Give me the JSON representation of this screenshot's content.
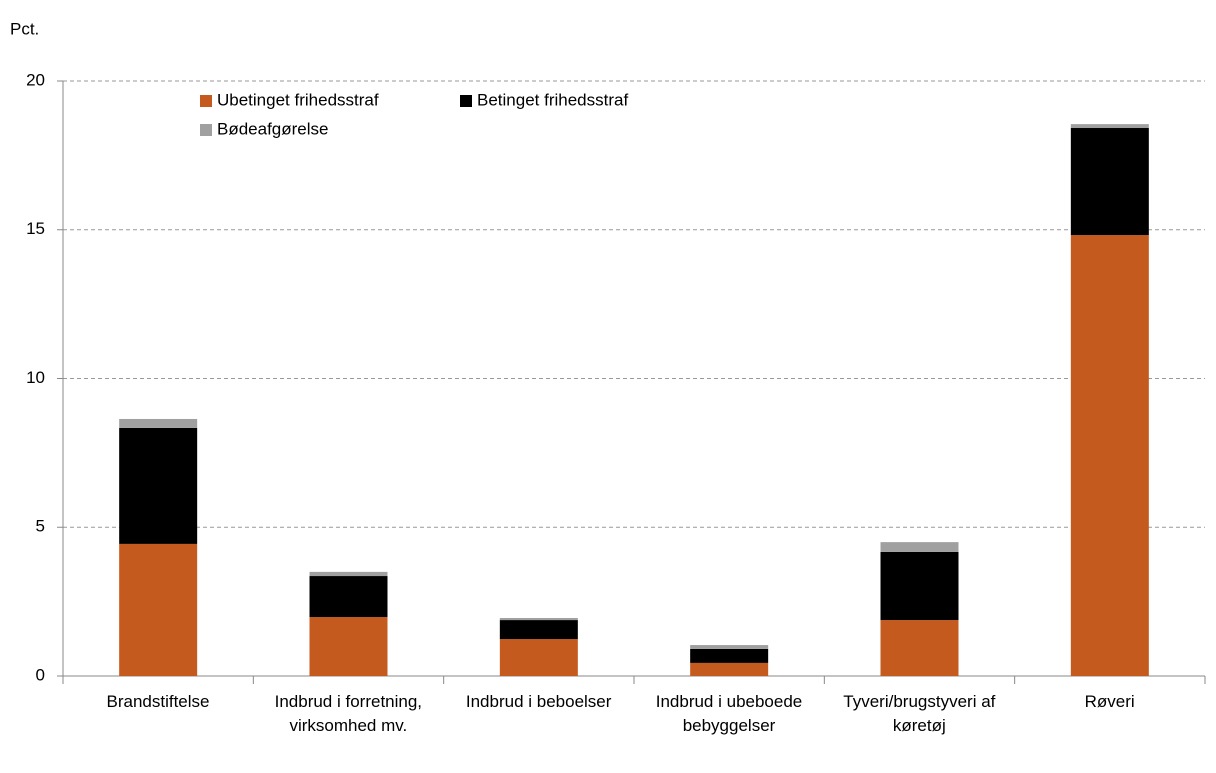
{
  "chart_data": {
    "type": "stacked-bar",
    "y_label": "Pct.",
    "categories": [
      "Brandstiftelse",
      "Indbrud i forretning, virksomhed mv.",
      "Indbrud i beboelser",
      "Indbrud i ubeboede bebyggelser",
      "Tyveri/brugstyveri af køretøj",
      "Røveri"
    ],
    "series": [
      {
        "name": "Ubetinget frihedsstraf",
        "color": "#c55a1e",
        "values": [
          4.44,
          1.98,
          1.24,
          0.44,
          1.88,
          14.82
        ]
      },
      {
        "name": "Betinget frihedsstraf",
        "color": "#000000",
        "values": [
          3.9,
          1.38,
          0.64,
          0.47,
          2.29,
          3.6
        ]
      },
      {
        "name": "Bødeafgørelse",
        "color": "#a0a0a0",
        "values": [
          0.3,
          0.14,
          0.07,
          0.13,
          0.33,
          0.13
        ]
      }
    ],
    "ylim": [
      0,
      20
    ],
    "yticks": [
      0,
      5,
      10,
      15,
      20
    ],
    "grid": true
  }
}
